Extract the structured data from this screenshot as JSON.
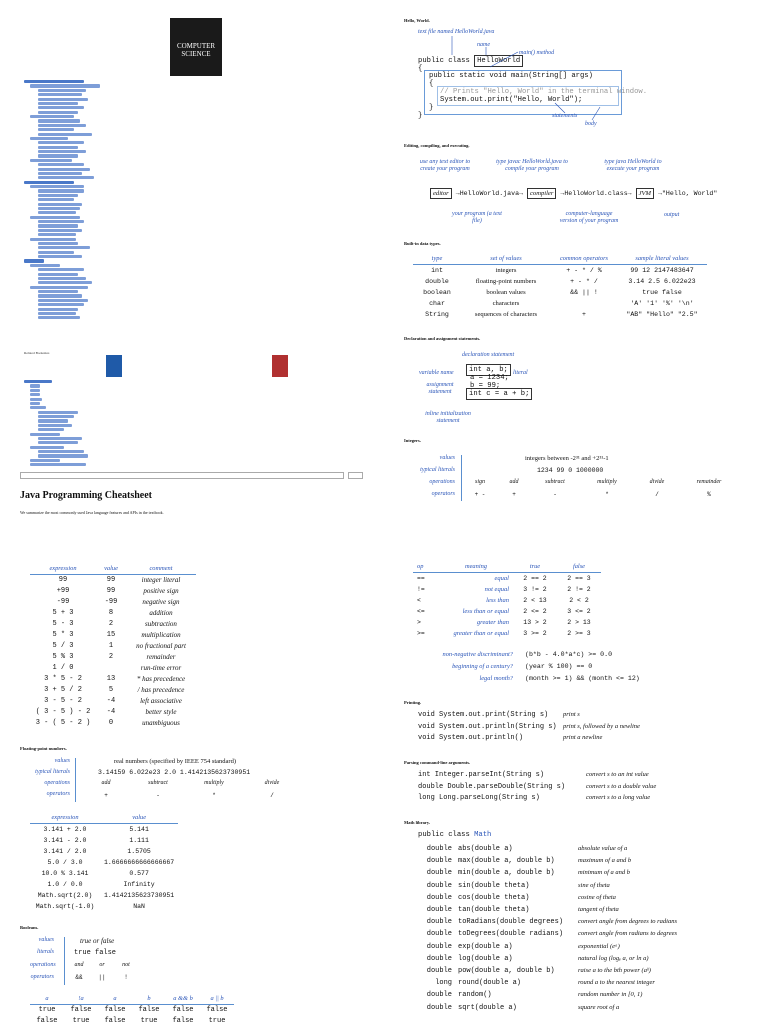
{
  "logo": {
    "line1": "COMPUTER",
    "line2": "SCIENCE"
  },
  "nav": {
    "related": "Related Booksites",
    "web_resources": "Web Resources"
  },
  "page_title": "Java Programming Cheatsheet",
  "intro": "We summarize the most commonly used Java language features and APIs in the textbook.",
  "hello": {
    "heading": "Hello, World.",
    "label_text_file": "text file named HelloWorld.java",
    "label_name": "name",
    "label_main": "main() method",
    "line1": "public class",
    "classname": "HelloWorld",
    "line2": "{",
    "line3": "public static void main(String[] args)",
    "line4": "{",
    "line5": "// Prints \"Hello, World\" in the terminal window.",
    "line6": "System.out.print(\"Hello, World\");",
    "line7": "}",
    "line8": "}",
    "label_statements": "statements",
    "label_body": "body"
  },
  "compile": {
    "heading": "Editing, compiling, and executing.",
    "l1": "use any text editor to create your program",
    "l2": "type javac HelloWorld.java to compile your program",
    "l3": "type java HelloWorld to execute your program",
    "editor": "editor",
    "file1": "HelloWorld.java",
    "compiler": "compiler",
    "file2": "HelloWorld.class",
    "jvm": "JVM",
    "output": "\"Hello, World\"",
    "b1": "your program (a text file)",
    "b2": "computer-language version of your program",
    "b3": "output"
  },
  "builtin": {
    "heading": "Built-in data types.",
    "cols": [
      "type",
      "set of values",
      "common operators",
      "sample literal values"
    ],
    "rows": [
      [
        "int",
        "integers",
        "+ - * / %",
        "99 12 2147483647"
      ],
      [
        "double",
        "floating-point numbers",
        "+ - * /",
        "3.14 2.5 6.022e23"
      ],
      [
        "boolean",
        "boolean values",
        "&& || !",
        "true false"
      ],
      [
        "char",
        "characters",
        "",
        "'A' '1' '%' '\\n'"
      ],
      [
        "String",
        "sequences of characters",
        "+",
        "\"AB\" \"Hello\" \"2.5\""
      ]
    ]
  },
  "decl": {
    "heading": "Declaration and assignment statements.",
    "label_decl": "declaration statement",
    "label_var": "variable name",
    "label_literal": "literal",
    "label_assign": "assignment statement",
    "label_inline": "inline initialization statement",
    "c1": "int a, b;",
    "c2": "a = 1234;",
    "c3": "b = 99;",
    "c4": "int c = a + b;"
  },
  "integers": {
    "heading": "Integers.",
    "values_label": "values",
    "values": "integers between -2³¹ and +2³¹-1",
    "literals_label": "typical literals",
    "literals": "1234  99  0  1000000",
    "ops_label": "operations",
    "ops": [
      "sign",
      "add",
      "subtract",
      "multiply",
      "divide",
      "remainder"
    ],
    "operators_label": "operators",
    "operators": [
      "+ -",
      "+",
      "-",
      "*",
      "/",
      "%"
    ]
  },
  "intexpr": {
    "cols": [
      "expression",
      "value",
      "comment"
    ],
    "rows": [
      [
        "99",
        "99",
        "integer literal"
      ],
      [
        "+99",
        "99",
        "positive sign"
      ],
      [
        "-99",
        "-99",
        "negative sign"
      ],
      [
        "5 + 3",
        "8",
        "addition"
      ],
      [
        "5 - 3",
        "2",
        "subtraction"
      ],
      [
        "5 * 3",
        "15",
        "multiplication"
      ],
      [
        "5 / 3",
        "1",
        "no fractional part"
      ],
      [
        "5 % 3",
        "2",
        "remainder"
      ],
      [
        "1 / 0",
        "",
        "run-time error"
      ],
      [
        "3 * 5 - 2",
        "13",
        "* has precedence"
      ],
      [
        "3 + 5 / 2",
        "5",
        "/ has precedence"
      ],
      [
        "3 - 5 - 2",
        "-4",
        "left associative"
      ],
      [
        "( 3 - 5 ) - 2",
        "-4",
        "better style"
      ],
      [
        "3 - ( 5 - 2 )",
        "0",
        "unambiguous"
      ]
    ]
  },
  "floating": {
    "heading": "Floating-point numbers.",
    "values_label": "values",
    "values": "real numbers (specified by IEEE 754 standard)",
    "literals_label": "typical literals",
    "literals": "3.14159  6.022e23  2.0  1.4142135623730951",
    "ops_label": "operations",
    "ops": [
      "add",
      "subtract",
      "multiply",
      "divide"
    ],
    "operators_label": "operators",
    "operators": [
      "+",
      "-",
      "*",
      "/"
    ],
    "cols": [
      "expression",
      "value"
    ],
    "rows": [
      [
        "3.141 + 2.0",
        "5.141"
      ],
      [
        "3.141 - 2.0",
        "1.111"
      ],
      [
        "3.141 / 2.0",
        "1.5705"
      ],
      [
        "5.0 / 3.0",
        "1.6666666666666667"
      ],
      [
        "10.0 % 3.141",
        "0.577"
      ],
      [
        "1.0 / 0.0",
        "Infinity"
      ],
      [
        "Math.sqrt(2.0)",
        "1.4142135623730951"
      ],
      [
        "Math.sqrt(-1.0)",
        "NaN"
      ]
    ]
  },
  "booleans": {
    "heading": "Booleans.",
    "values_label": "values",
    "values": "true or false",
    "literals_label": "literals",
    "literals": "true  false",
    "ops_label": "operations",
    "ops": [
      "and",
      "or",
      "not"
    ],
    "operators_label": "operators",
    "operators": [
      "&&",
      "||",
      "!"
    ],
    "cols": [
      "a",
      "!a",
      "a",
      "b",
      "a && b",
      "a || b"
    ],
    "rows": [
      [
        "true",
        "false",
        "false",
        "false",
        "false",
        "false"
      ],
      [
        "false",
        "true",
        "false",
        "true",
        "false",
        "true"
      ]
    ]
  },
  "compare": {
    "cols": [
      "op",
      "meaning",
      "true",
      "false"
    ],
    "rows": [
      [
        "==",
        "equal",
        "2 == 2",
        "2 == 3"
      ],
      [
        "!=",
        "not equal",
        "3 != 2",
        "2 != 2"
      ],
      [
        "<",
        "less than",
        "2 < 13",
        "2 < 2"
      ],
      [
        "<=",
        "less than or equal",
        "2 <= 2",
        "3 <= 2"
      ],
      [
        ">",
        "greater than",
        "13 > 2",
        "2 > 13"
      ],
      [
        ">=",
        "greater than or equal",
        "3 >= 2",
        "2 >= 3"
      ]
    ],
    "ex": [
      [
        "non-negative discriminant?",
        "(b*b - 4.0*a*c) >= 0.0"
      ],
      [
        "beginning of a century?",
        "(year % 100) == 0"
      ],
      [
        "legal month?",
        "(month >= 1) && (month <= 12)"
      ]
    ]
  },
  "printing": {
    "heading": "Printing.",
    "rows": [
      [
        "void System.out.print(String s)",
        "print s"
      ],
      [
        "void System.out.println(String s)",
        "print s, followed by a newline"
      ],
      [
        "void System.out.println()",
        "print a newline"
      ]
    ]
  },
  "parsing": {
    "heading": "Parsing command-line arguments.",
    "rows": [
      [
        "int Integer.parseInt(String s)",
        "convert s to an int value"
      ],
      [
        "double Double.parseDouble(String s)",
        "convert s to a double value"
      ],
      [
        "long Long.parseLong(String s)",
        "convert s to a long value"
      ]
    ]
  },
  "math": {
    "heading": "Math library.",
    "classline": "public class",
    "classname": "Math",
    "rows": [
      [
        "double",
        "abs(double a)",
        "absolute value of a"
      ],
      [
        "double",
        "max(double a, double b)",
        "maximum of a and b"
      ],
      [
        "double",
        "min(double a, double b)",
        "minimum of a and b"
      ],
      [
        "double",
        "sin(double theta)",
        "sine of theta"
      ],
      [
        "double",
        "cos(double theta)",
        "cosine of theta"
      ],
      [
        "double",
        "tan(double theta)",
        "tangent of theta"
      ],
      [
        "double",
        "toRadians(double degrees)",
        "convert angle from degrees to radians"
      ],
      [
        "double",
        "toDegrees(double radians)",
        "convert angle from radians to degrees"
      ],
      [
        "double",
        "exp(double a)",
        "exponential (eᵃ)"
      ],
      [
        "double",
        "log(double a)",
        "natural log (logₑ a, or ln a)"
      ],
      [
        "double",
        "pow(double a, double b)",
        "raise a to the bth power (aᵇ)"
      ],
      [
        "long",
        "round(double a)",
        "round a to the nearest integer"
      ],
      [
        "double",
        "random()",
        "random number in [0, 1)"
      ],
      [
        "double",
        "sqrt(double a)",
        "square root of a"
      ]
    ]
  }
}
